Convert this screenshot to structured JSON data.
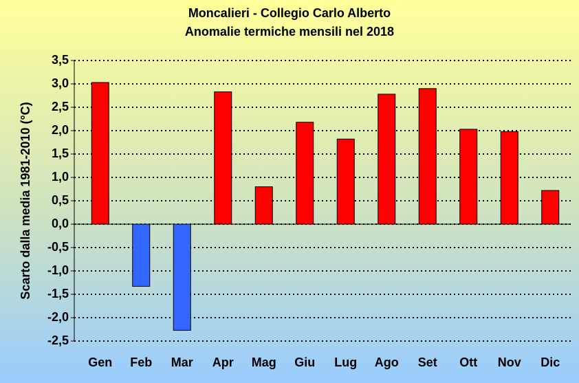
{
  "chart_data": {
    "type": "bar",
    "title": "Moncalieri - Collegio Carlo Alberto",
    "subtitle": "Anomalie termiche mensili nel 2018",
    "y_label": "Scarto dalla media 1981-2010 (°C)",
    "categories": [
      "Gen",
      "Feb",
      "Mar",
      "Apr",
      "Mag",
      "Giu",
      "Lug",
      "Ago",
      "Set",
      "Ott",
      "Nov",
      "Dic"
    ],
    "values": [
      3.03,
      -1.33,
      -2.27,
      2.83,
      0.8,
      2.18,
      1.82,
      2.78,
      2.9,
      2.03,
      1.98,
      0.72
    ],
    "positive_color": "#ff0000",
    "negative_color": "#3366ff",
    "ylim": [
      -2.5,
      3.5
    ],
    "yticks": [
      {
        "value": -2.5,
        "label": "-2,5"
      },
      {
        "value": -2,
        "label": "-2,0"
      },
      {
        "value": -1.5,
        "label": "-1,5"
      },
      {
        "value": -1,
        "label": "-1,0"
      },
      {
        "value": -0.5,
        "label": "-0,5"
      },
      {
        "value": 0,
        "label": "0,0"
      },
      {
        "value": 0.5,
        "label": "0,5"
      },
      {
        "value": 1,
        "label": "1,0"
      },
      {
        "value": 1.5,
        "label": "1,5"
      },
      {
        "value": 2,
        "label": "2,0"
      },
      {
        "value": 2.5,
        "label": "2,5"
      },
      {
        "value": 3,
        "label": "3,0"
      },
      {
        "value": 3.5,
        "label": "3,5"
      }
    ],
    "grid": true
  }
}
